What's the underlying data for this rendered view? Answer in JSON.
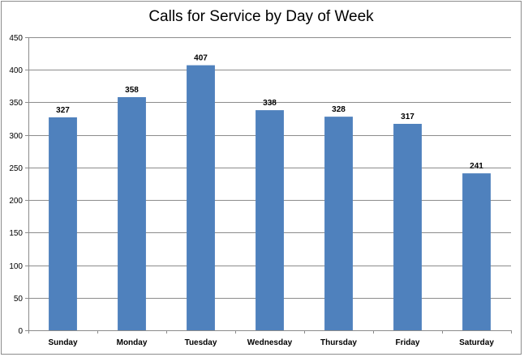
{
  "chart_data": {
    "type": "bar",
    "title": "Calls for Service by Day of Week",
    "categories": [
      "Sunday",
      "Monday",
      "Tuesday",
      "Wednesday",
      "Thursday",
      "Friday",
      "Saturday"
    ],
    "values": [
      327,
      358,
      407,
      338,
      328,
      317,
      241
    ],
    "ylim": [
      0,
      450
    ],
    "yticks": [
      0,
      50,
      100,
      150,
      200,
      250,
      300,
      350,
      400,
      450
    ],
    "grid": true,
    "legend": "none",
    "bar_color": "#4f81bd",
    "data_labels": [
      "327",
      "358",
      "407",
      "338",
      "328",
      "317",
      "241"
    ],
    "ytick_labels": [
      "0",
      "50",
      "100",
      "150",
      "200",
      "250",
      "300",
      "350",
      "400",
      "450"
    ]
  }
}
